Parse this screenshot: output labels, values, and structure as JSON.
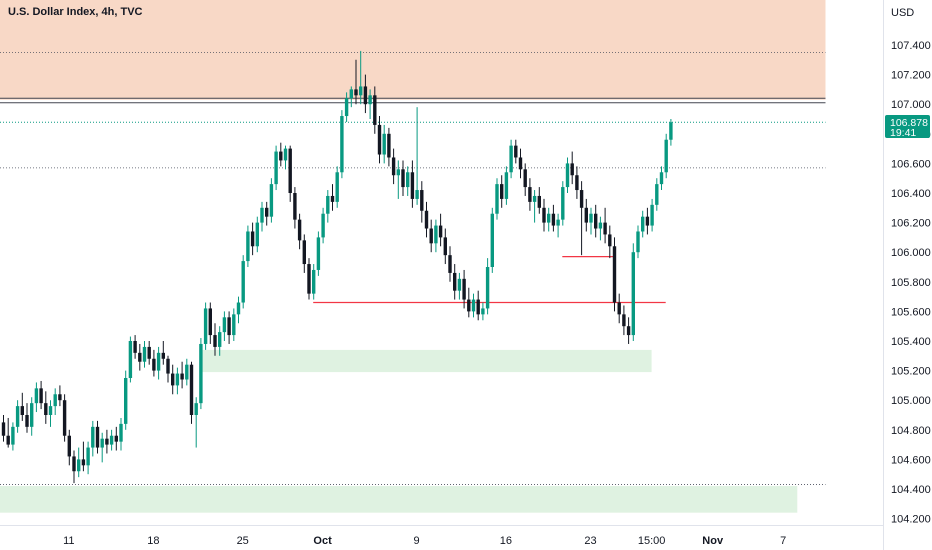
{
  "chart_title": "U.S. Dollar Index, 4h, TVC",
  "currency_label": "USD",
  "price_badge": {
    "price": "106.878",
    "countdown": "19:41",
    "color": "#089981"
  },
  "colors": {
    "up": "#089981",
    "down": "#131722",
    "supply_zone": "#f8d8c6",
    "demand_zone": "#dff2e1",
    "level_line": "#f23645",
    "resistance_line": "#434651",
    "dotted_line": "#4a4f5c"
  },
  "chart_data": {
    "type": "candlestick",
    "timeframe": "4h",
    "ylim": [
      104.1,
      107.75
    ],
    "x_ticks": [
      {
        "label": "11",
        "bar": 14,
        "bold": false
      },
      {
        "label": "18",
        "bar": 32,
        "bold": false
      },
      {
        "label": "25",
        "bar": 51,
        "bold": false
      },
      {
        "label": "Oct",
        "bar": 68,
        "bold": true
      },
      {
        "label": "9",
        "bar": 88,
        "bold": false
      },
      {
        "label": "16",
        "bar": 107,
        "bold": false
      },
      {
        "label": "23",
        "bar": 125,
        "bold": false
      },
      {
        "label": "15:00",
        "bar": 138,
        "bold": false
      },
      {
        "label": "Nov",
        "bar": 151,
        "bold": true
      },
      {
        "label": "7",
        "bar": 166,
        "bold": false
      }
    ],
    "y_ticks": [
      107.4,
      107.2,
      107.0,
      106.8,
      106.6,
      106.4,
      106.2,
      106.0,
      105.8,
      105.6,
      105.4,
      105.2,
      105.0,
      104.8,
      104.6,
      104.4,
      104.2
    ],
    "zones": [
      {
        "type": "supply",
        "from": 107.03,
        "to": 107.75,
        "bar_start": -1,
        "bar_end": 175
      },
      {
        "type": "demand",
        "from": 105.19,
        "to": 105.34,
        "bar_start": 42,
        "bar_end": 138
      },
      {
        "type": "demand",
        "from": 104.24,
        "to": 104.42,
        "bar_start": -1,
        "bar_end": 169
      }
    ],
    "lines": [
      {
        "kind": "resistance",
        "value": 107.04,
        "bar_start": -1,
        "bar_end": 175
      },
      {
        "kind": "resistance",
        "value": 107.01,
        "bar_start": -1,
        "bar_end": 175
      },
      {
        "kind": "dotted",
        "value": 107.35,
        "bar_start": -1,
        "bar_end": 175
      },
      {
        "kind": "dotted",
        "value": 106.57,
        "bar_start": -1,
        "bar_end": 175
      },
      {
        "kind": "dotted",
        "value": 104.43,
        "bar_start": -1,
        "bar_end": 175
      },
      {
        "kind": "level",
        "value": 105.66,
        "bar_start": 66,
        "bar_end": 141
      },
      {
        "kind": "level",
        "value": 105.97,
        "bar_start": 119,
        "bar_end": 130
      },
      {
        "kind": "last_price",
        "value": 106.878,
        "bar_start": -1,
        "bar_end": 175
      }
    ],
    "candles": [
      [
        104.85,
        104.9,
        104.72,
        104.76
      ],
      [
        104.76,
        104.88,
        104.68,
        104.7
      ],
      [
        104.7,
        104.85,
        104.66,
        104.82
      ],
      [
        104.82,
        105.0,
        104.78,
        104.96
      ],
      [
        104.96,
        105.05,
        104.86,
        104.9
      ],
      [
        104.9,
        104.98,
        104.78,
        104.82
      ],
      [
        104.82,
        105.02,
        104.76,
        104.98
      ],
      [
        104.98,
        105.12,
        104.92,
        105.08
      ],
      [
        105.08,
        105.13,
        104.94,
        104.98
      ],
      [
        104.98,
        105.06,
        104.84,
        104.9
      ],
      [
        104.9,
        105.0,
        104.82,
        104.96
      ],
      [
        104.96,
        105.08,
        104.9,
        105.04
      ],
      [
        105.04,
        105.1,
        104.96,
        105.0
      ],
      [
        105.0,
        105.04,
        104.72,
        104.76
      ],
      [
        104.76,
        104.8,
        104.56,
        104.62
      ],
      [
        104.62,
        104.66,
        104.44,
        104.52
      ],
      [
        104.52,
        104.68,
        104.48,
        104.6
      ],
      [
        104.6,
        104.72,
        104.52,
        104.56
      ],
      [
        104.56,
        104.72,
        104.5,
        104.68
      ],
      [
        104.68,
        104.86,
        104.62,
        104.82
      ],
      [
        104.82,
        104.86,
        104.64,
        104.68
      ],
      [
        104.68,
        104.78,
        104.58,
        104.74
      ],
      [
        104.74,
        104.8,
        104.64,
        104.7
      ],
      [
        104.7,
        104.8,
        104.66,
        104.76
      ],
      [
        104.76,
        104.82,
        104.66,
        104.72
      ],
      [
        104.72,
        104.88,
        104.66,
        104.84
      ],
      [
        104.84,
        105.2,
        104.8,
        105.15
      ],
      [
        105.15,
        105.43,
        105.12,
        105.4
      ],
      [
        105.4,
        105.44,
        105.28,
        105.32
      ],
      [
        105.32,
        105.38,
        105.2,
        105.26
      ],
      [
        105.26,
        105.4,
        105.22,
        105.36
      ],
      [
        105.36,
        105.4,
        105.24,
        105.28
      ],
      [
        105.28,
        105.34,
        105.16,
        105.2
      ],
      [
        105.2,
        105.36,
        105.14,
        105.32
      ],
      [
        105.32,
        105.4,
        105.24,
        105.28
      ],
      [
        105.28,
        105.3,
        105.12,
        105.18
      ],
      [
        105.18,
        105.24,
        105.04,
        105.1
      ],
      [
        105.1,
        105.22,
        105.04,
        105.18
      ],
      [
        105.18,
        105.26,
        105.08,
        105.14
      ],
      [
        105.14,
        105.28,
        105.1,
        105.24
      ],
      [
        105.24,
        105.26,
        104.84,
        104.9
      ],
      [
        104.9,
        105.02,
        104.68,
        104.98
      ],
      [
        104.98,
        105.42,
        104.94,
        105.38
      ],
      [
        105.38,
        105.66,
        105.34,
        105.62
      ],
      [
        105.62,
        105.66,
        105.38,
        105.44
      ],
      [
        105.44,
        105.52,
        105.3,
        105.36
      ],
      [
        105.36,
        105.5,
        105.3,
        105.46
      ],
      [
        105.46,
        105.6,
        105.4,
        105.56
      ],
      [
        105.56,
        105.6,
        105.38,
        105.44
      ],
      [
        105.44,
        105.62,
        105.4,
        105.58
      ],
      [
        105.58,
        105.7,
        105.52,
        105.66
      ],
      [
        105.66,
        105.98,
        105.62,
        105.94
      ],
      [
        105.94,
        106.18,
        105.9,
        106.14
      ],
      [
        106.14,
        106.2,
        105.98,
        106.04
      ],
      [
        106.04,
        106.24,
        106.0,
        106.2
      ],
      [
        106.2,
        106.34,
        106.14,
        106.3
      ],
      [
        106.3,
        106.34,
        106.18,
        106.24
      ],
      [
        106.24,
        106.5,
        106.2,
        106.46
      ],
      [
        106.46,
        106.72,
        106.42,
        106.68
      ],
      [
        106.68,
        106.74,
        106.58,
        106.62
      ],
      [
        106.62,
        106.72,
        106.56,
        106.7
      ],
      [
        106.7,
        106.72,
        106.34,
        106.4
      ],
      [
        106.4,
        106.44,
        106.16,
        106.22
      ],
      [
        106.22,
        106.26,
        106.02,
        106.08
      ],
      [
        106.08,
        106.12,
        105.86,
        105.92
      ],
      [
        105.92,
        105.96,
        105.68,
        105.72
      ],
      [
        105.72,
        105.92,
        105.68,
        105.88
      ],
      [
        105.88,
        106.14,
        105.84,
        106.1
      ],
      [
        106.1,
        106.3,
        106.06,
        106.26
      ],
      [
        106.26,
        106.42,
        106.2,
        106.38
      ],
      [
        106.38,
        106.46,
        106.28,
        106.34
      ],
      [
        106.34,
        106.58,
        106.3,
        106.54
      ],
      [
        106.54,
        106.96,
        106.5,
        106.92
      ],
      [
        106.92,
        107.08,
        106.88,
        107.04
      ],
      [
        107.04,
        107.12,
        106.98,
        107.1
      ],
      [
        107.1,
        107.3,
        107.0,
        107.06
      ],
      [
        107.06,
        107.36,
        107.0,
        107.12
      ],
      [
        107.12,
        107.2,
        106.94,
        107.0
      ],
      [
        107.0,
        107.1,
        106.9,
        107.06
      ],
      [
        107.06,
        107.12,
        106.8,
        106.86
      ],
      [
        106.86,
        106.92,
        106.6,
        106.66
      ],
      [
        106.66,
        106.86,
        106.6,
        106.8
      ],
      [
        106.8,
        106.84,
        106.58,
        106.64
      ],
      [
        106.64,
        106.7,
        106.46,
        106.52
      ],
      [
        106.52,
        106.62,
        106.36,
        106.56
      ],
      [
        106.56,
        106.62,
        106.38,
        106.44
      ],
      [
        106.44,
        106.58,
        106.38,
        106.54
      ],
      [
        106.54,
        106.62,
        106.3,
        106.36
      ],
      [
        106.36,
        106.98,
        106.32,
        106.42
      ],
      [
        106.42,
        106.48,
        106.2,
        106.28
      ],
      [
        106.28,
        106.34,
        106.1,
        106.16
      ],
      [
        106.16,
        106.22,
        106.0,
        106.06
      ],
      [
        106.06,
        106.22,
        106.0,
        106.18
      ],
      [
        106.18,
        106.26,
        106.04,
        106.1
      ],
      [
        106.1,
        106.16,
        105.92,
        105.98
      ],
      [
        105.98,
        106.04,
        105.8,
        105.86
      ],
      [
        105.86,
        105.92,
        105.68,
        105.74
      ],
      [
        105.74,
        105.86,
        105.68,
        105.82
      ],
      [
        105.82,
        105.88,
        105.62,
        105.68
      ],
      [
        105.68,
        105.76,
        105.56,
        105.6
      ],
      [
        105.6,
        105.72,
        105.56,
        105.68
      ],
      [
        105.68,
        105.74,
        105.54,
        105.58
      ],
      [
        105.58,
        105.66,
        105.54,
        105.62
      ],
      [
        105.62,
        105.96,
        105.58,
        105.9
      ],
      [
        105.9,
        106.3,
        105.86,
        106.26
      ],
      [
        106.26,
        106.5,
        106.22,
        106.46
      ],
      [
        106.46,
        106.52,
        106.3,
        106.36
      ],
      [
        106.36,
        106.58,
        106.32,
        106.54
      ],
      [
        106.54,
        106.76,
        106.5,
        106.72
      ],
      [
        106.72,
        106.76,
        106.6,
        106.64
      ],
      [
        106.64,
        106.7,
        106.5,
        106.56
      ],
      [
        106.56,
        106.6,
        106.38,
        106.44
      ],
      [
        106.44,
        106.5,
        106.28,
        106.34
      ],
      [
        106.34,
        106.42,
        106.2,
        106.38
      ],
      [
        106.38,
        106.44,
        106.26,
        106.3
      ],
      [
        106.3,
        106.36,
        106.14,
        106.2
      ],
      [
        106.2,
        106.3,
        106.14,
        106.26
      ],
      [
        106.26,
        106.32,
        106.14,
        106.18
      ],
      [
        106.18,
        106.26,
        106.1,
        106.22
      ],
      [
        106.22,
        106.48,
        106.18,
        106.44
      ],
      [
        106.44,
        106.64,
        106.4,
        106.6
      ],
      [
        106.6,
        106.68,
        106.46,
        106.52
      ],
      [
        106.52,
        106.58,
        106.36,
        106.42
      ],
      [
        106.42,
        106.48,
        105.98,
        106.3
      ],
      [
        106.3,
        106.36,
        106.14,
        106.2
      ],
      [
        106.2,
        106.3,
        106.12,
        106.26
      ],
      [
        106.26,
        106.32,
        106.1,
        106.16
      ],
      [
        106.16,
        106.24,
        106.08,
        106.2
      ],
      [
        106.2,
        106.3,
        106.06,
        106.12
      ],
      [
        106.12,
        106.18,
        105.96,
        106.04
      ],
      [
        106.04,
        106.1,
        105.6,
        105.66
      ],
      [
        105.66,
        105.72,
        105.52,
        105.58
      ],
      [
        105.58,
        105.64,
        105.44,
        105.5
      ],
      [
        105.5,
        105.56,
        105.38,
        105.44
      ],
      [
        105.44,
        106.06,
        105.4,
        106.0
      ],
      [
        106.0,
        106.18,
        105.96,
        106.14
      ],
      [
        106.14,
        106.28,
        106.1,
        106.24
      ],
      [
        106.24,
        106.3,
        106.12,
        106.18
      ],
      [
        106.18,
        106.36,
        106.14,
        106.32
      ],
      [
        106.32,
        106.5,
        106.28,
        106.46
      ],
      [
        106.46,
        106.58,
        106.42,
        106.54
      ],
      [
        106.54,
        106.8,
        106.5,
        106.76
      ],
      [
        106.76,
        106.9,
        106.72,
        106.878
      ]
    ]
  }
}
